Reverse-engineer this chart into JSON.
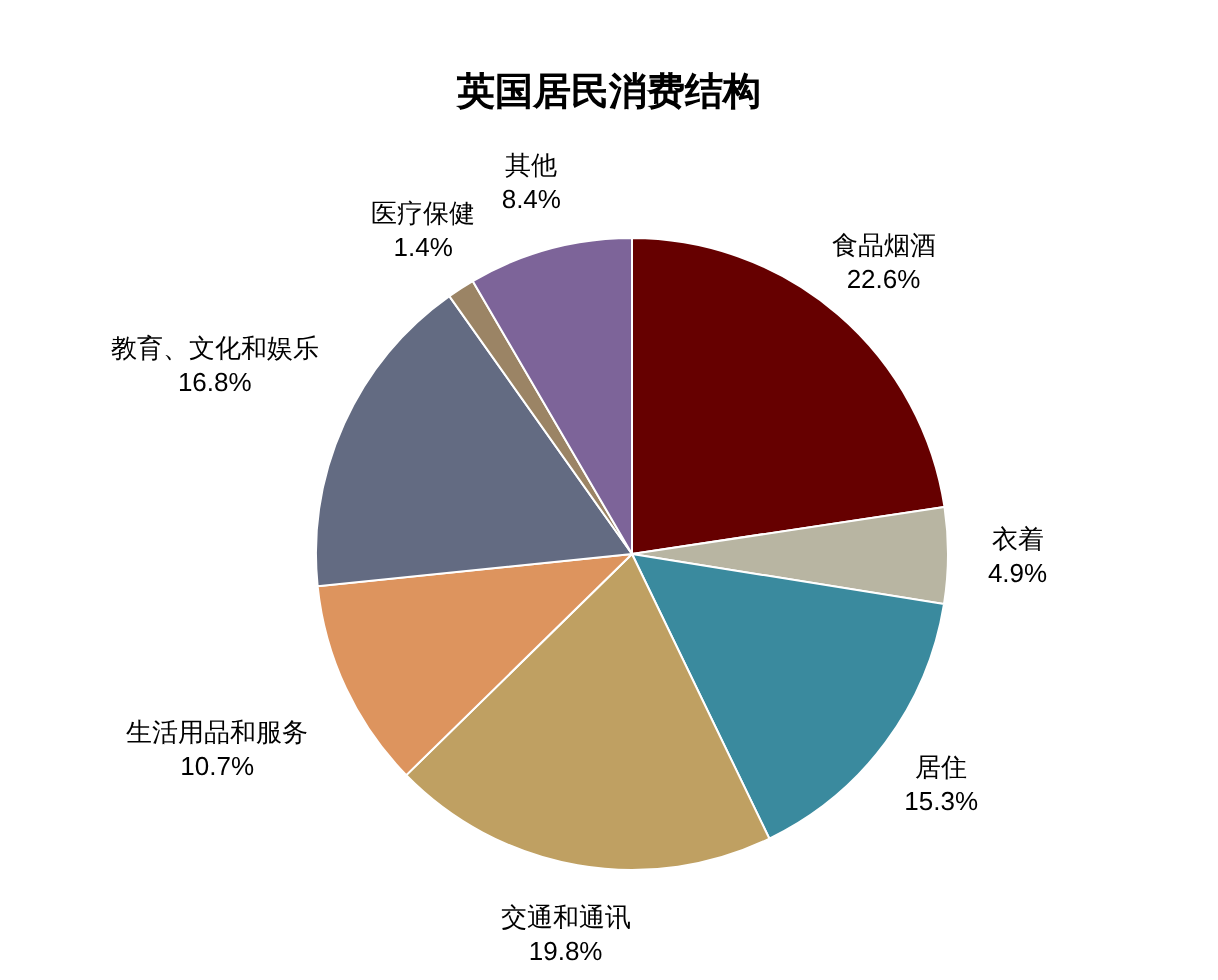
{
  "chart_data": {
    "type": "pie",
    "title": "英国居民消费结构",
    "categories": [
      "食品烟酒",
      "衣着",
      "居住",
      "交通和通讯",
      "生活用品和服务",
      "教育、文化和娱乐",
      "医疗保健",
      "其他"
    ],
    "values": [
      22.6,
      4.9,
      15.3,
      19.8,
      10.7,
      16.8,
      1.4,
      8.4
    ],
    "value_labels": [
      "22.6%",
      "4.9%",
      "15.3%",
      "19.8%",
      "10.7%",
      "16.8%",
      "1.4%",
      "8.4%"
    ],
    "colors": [
      "#660000",
      "#b8b5a2",
      "#3a8a9e",
      "#bfa062",
      "#dd945e",
      "#636b82",
      "#9b8465",
      "#7d6499"
    ]
  }
}
